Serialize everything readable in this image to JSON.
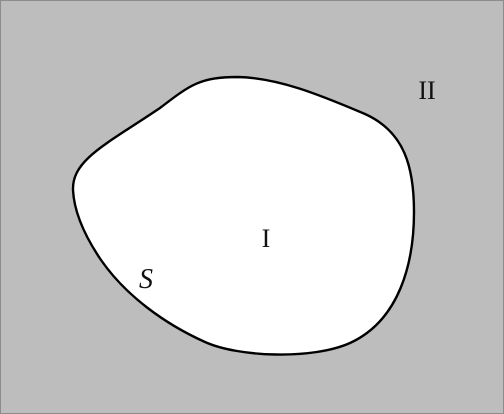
{
  "diagram": {
    "colors": {
      "outer_region": "#bdbdbd",
      "inner_region": "#ffffff",
      "boundary": "#000000",
      "frame": "#8c8c8c"
    },
    "labels": {
      "inner_region": "I",
      "outer_region": "II",
      "boundary": "S"
    }
  }
}
